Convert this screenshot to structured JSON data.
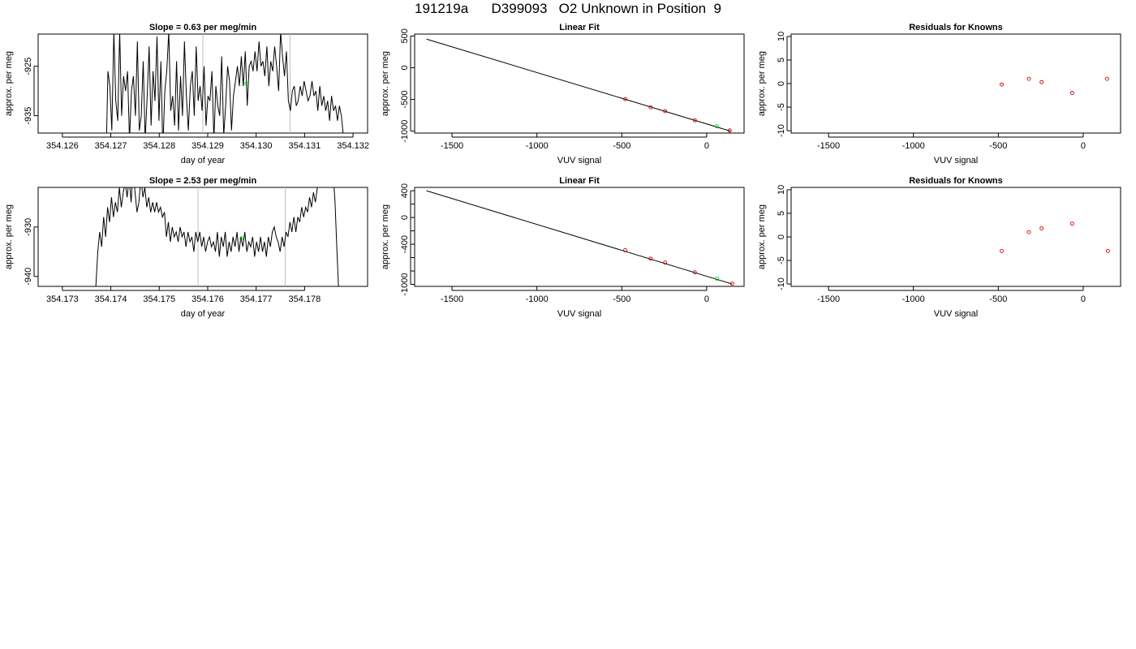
{
  "figure_title": "191219a      D399093   O2 Unknown in Position  9",
  "colors": {
    "line": "#000000",
    "known_points": "#cc0000",
    "unknown_point": "#00dd00",
    "cursor_lines": "#bfbfbf"
  },
  "chart_data": [
    {
      "type": "line",
      "title": "Slope =  0.63  per meg/min",
      "xlabel": "day of year",
      "ylabel": "approx. per meg",
      "xlim": [
        354.1255,
        354.1323
      ],
      "ylim": [
        -938.5,
        -918.5
      ],
      "xticks": [
        "354.126",
        "354.127",
        "354.128",
        "354.129",
        "354.130",
        "354.131",
        "354.132"
      ],
      "yticks": [
        "-925",
        "-935"
      ],
      "vlines": [
        354.1289,
        354.1307
      ],
      "unknown_point": {
        "x": 354.1298,
        "y": -928.5
      },
      "trace": {
        "x_start": 354.1269,
        "x_end": 354.1318,
        "y": [
          -945,
          -926,
          -929,
          -938,
          -918,
          -932,
          -936,
          -918,
          -935,
          -927,
          -930,
          -926,
          -940,
          -930,
          -927,
          -935,
          -920,
          -938,
          -935,
          -924,
          -940,
          -931,
          -921,
          -937,
          -926,
          -932,
          -919,
          -936,
          -924,
          -942,
          -930,
          -926,
          -918,
          -934,
          -931,
          -937,
          -924,
          -938,
          -927,
          -935,
          -920,
          -931,
          -938,
          -929,
          -926,
          -935,
          -921,
          -932,
          -929,
          -934,
          -925,
          -937,
          -931,
          -932,
          -926,
          -940,
          -929,
          -933,
          -935,
          -923,
          -939,
          -933,
          -925,
          -928,
          -938,
          -931,
          -928,
          -925,
          -929,
          -923,
          -929,
          -922,
          -933,
          -925,
          -924,
          -926,
          -922,
          -926,
          -920,
          -925,
          -924,
          -927,
          -921,
          -929,
          -924,
          -926,
          -921,
          -925,
          -930,
          -918,
          -923,
          -927,
          -922,
          -932,
          -934,
          -930,
          -929,
          -933,
          -932,
          -929,
          -931,
          -928,
          -930,
          -932,
          -931,
          -928,
          -931,
          -930,
          -934,
          -929,
          -933,
          -931,
          -934,
          -932,
          -936,
          -931,
          -934,
          -933,
          -936,
          -933,
          -935,
          -939
        ]
      }
    },
    {
      "type": "scatter",
      "title": "Linear Fit",
      "xlabel": "VUV signal",
      "ylabel": "approx. per meg",
      "xlim": [
        -1720,
        220
      ],
      "ylim": [
        -1030,
        530
      ],
      "xticks": [
        -1500,
        -1000,
        -500,
        0
      ],
      "yticks": [
        500,
        0,
        -500,
        -1000
      ],
      "fit_line": {
        "x": [
          -1650,
          140
        ],
        "y": [
          450,
          -1000
        ]
      },
      "known_points": {
        "x": [
          -480,
          -330,
          -245,
          -70,
          135
        ],
        "y": [
          -495,
          -625,
          -685,
          -830,
          -990
        ]
      },
      "unknown_point": {
        "x": 60,
        "y": -925
      }
    },
    {
      "type": "scatter",
      "title": "Residuals for Knowns",
      "xlabel": "VUV signal",
      "ylabel": "approx. per meg",
      "xlim": [
        -1720,
        220
      ],
      "ylim": [
        -10.5,
        10.5
      ],
      "xticks": [
        -1500,
        -1000,
        -500,
        0
      ],
      "yticks": [
        10,
        5,
        0,
        -5,
        -10
      ],
      "known_points": {
        "x": [
          -480,
          -320,
          -245,
          -65,
          140
        ],
        "y": [
          -0.2,
          1.0,
          0.3,
          -2.0,
          1.0
        ]
      }
    },
    {
      "type": "line",
      "title": "Slope =  2.53  per meg/min",
      "xlabel": "day of year",
      "ylabel": "approx. per meg",
      "xlim": [
        354.1725,
        354.1793
      ],
      "ylim": [
        -942,
        -922
      ],
      "xticks": [
        "354.173",
        "354.174",
        "354.175",
        "354.176",
        "354.177",
        "354.178"
      ],
      "yticks": [
        "-930",
        "-940"
      ],
      "vlines": [
        354.1758,
        354.1776
      ],
      "unknown_point": {
        "x": 354.1767,
        "y": -932.3
      },
      "trace": {
        "x_start": 354.17365,
        "x_end": 354.17875,
        "y": [
          -960,
          -942,
          -935,
          -931,
          -934,
          -928,
          -932,
          -926,
          -929,
          -924,
          -928,
          -925,
          -927,
          -922,
          -926,
          -923,
          -921,
          -924,
          -920,
          -925,
          -918,
          -923,
          -927,
          -925,
          -920,
          -924,
          -922,
          -926,
          -924,
          -927,
          -925,
          -927,
          -925,
          -927,
          -926,
          -928,
          -927,
          -932,
          -929,
          -933,
          -930,
          -932,
          -931,
          -933,
          -930,
          -932,
          -931,
          -934,
          -931,
          -933,
          -932,
          -935,
          -931,
          -933,
          -931,
          -934,
          -932,
          -935,
          -933,
          -932,
          -934,
          -933,
          -935,
          -931,
          -936,
          -932,
          -934,
          -931,
          -936,
          -933,
          -935,
          -932,
          -934,
          -931,
          -935,
          -932,
          -934,
          -931,
          -935,
          -933,
          -934,
          -932,
          -936,
          -933,
          -935,
          -932,
          -935,
          -933,
          -936,
          -932,
          -934,
          -931,
          -930,
          -932,
          -933,
          -935,
          -932,
          -934,
          -931,
          -932,
          -929,
          -931,
          -928,
          -931,
          -928,
          -929,
          -926,
          -928,
          -926,
          -927,
          -924,
          -926,
          -923,
          -925,
          -922,
          -921,
          -918,
          -920,
          -917,
          -919,
          -918,
          -917,
          -919,
          -925,
          -935,
          -944,
          -960
        ]
      }
    },
    {
      "type": "scatter",
      "title": "Linear Fit",
      "xlabel": "VUV signal",
      "ylabel": "approx. per meg",
      "xlim": [
        -1720,
        220
      ],
      "ylim": [
        -1030,
        450
      ],
      "xticks": [
        -1500,
        -1000,
        -500,
        0
      ],
      "yticks": [
        400,
        0,
        -400,
        -1000
      ],
      "yticks_all": [
        400,
        200,
        0,
        -200,
        -400,
        -600,
        -800,
        -1000
      ],
      "fit_line": {
        "x": [
          -1650,
          150
        ],
        "y": [
          400,
          -995
        ]
      },
      "known_points": {
        "x": [
          -480,
          -330,
          -245,
          -70,
          150
        ],
        "y": [
          -490,
          -615,
          -675,
          -820,
          -990
        ]
      },
      "unknown_point": {
        "x": 60,
        "y": -915
      }
    },
    {
      "type": "scatter",
      "title": "Residuals for Knowns",
      "xlabel": "VUV signal",
      "ylabel": "approx. per meg",
      "xlim": [
        -1720,
        220
      ],
      "ylim": [
        -10.5,
        10.5
      ],
      "xticks": [
        -1500,
        -1000,
        -500,
        0
      ],
      "yticks": [
        10,
        5,
        0,
        -5,
        -10
      ],
      "known_points": {
        "x": [
          -480,
          -320,
          -245,
          -65,
          145
        ],
        "y": [
          -3.0,
          1.0,
          1.8,
          2.8,
          -3.0
        ]
      }
    }
  ]
}
